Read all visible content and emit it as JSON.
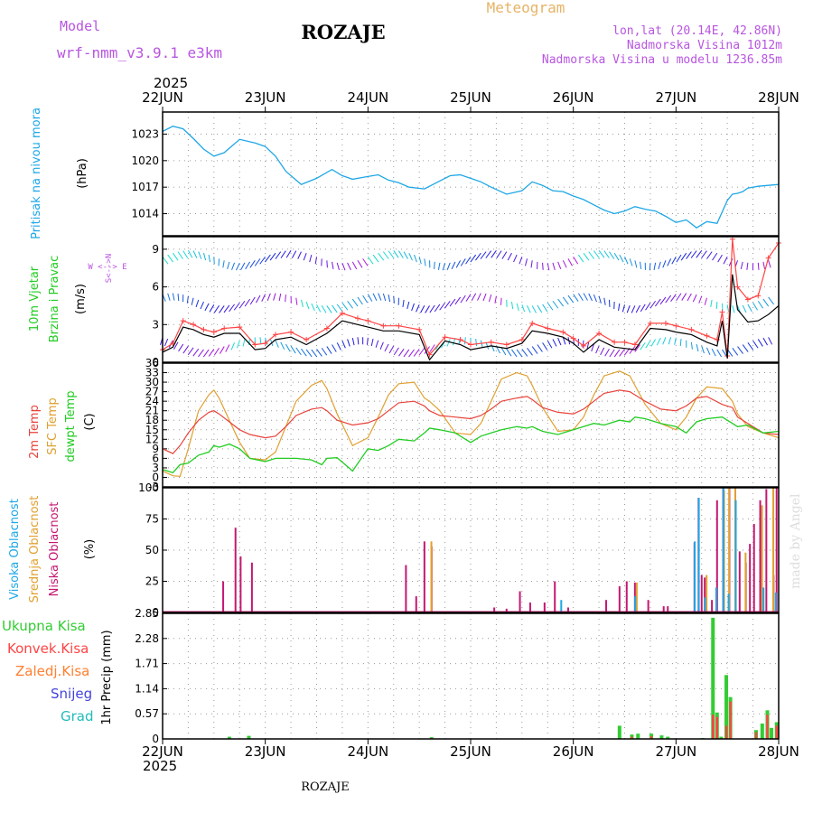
{
  "header": {
    "model_label": "Model",
    "model_name": "wrf-nmm_v3.9.1 e3km",
    "location": "ROZAJE",
    "meteogram_label": "Meteogram",
    "coords": "lon,lat (20.14E, 42.86N)",
    "elevation": "Nadmorska Visina 1012m",
    "model_elevation": "Nadmorska Visina u modelu 1236.85m",
    "year": "2025",
    "footer_location": "ROZAJE",
    "credit": "made by Angel"
  },
  "colors": {
    "pressure": "#1ea7e6",
    "wind_speed": "#000000",
    "wind_gust": "#ff4444",
    "temp2m": "#e8433b",
    "sfc_temp": "#e0a030",
    "dewpt": "#22cc22",
    "cloud_high": "#1ea7e6",
    "cloud_mid": "#e0a030",
    "cloud_low": "#c41870",
    "precip_total": "#33cc33",
    "precip_conv": "#ff4444",
    "precip_frozen": "#ff8030",
    "snow": "#4444dd",
    "hail": "#22bbbb",
    "model_purple": "#b855e0",
    "meteogram_orange": "#e6b366"
  },
  "chart_data": [
    {
      "id": "pressure",
      "type": "line",
      "ylabel_name": "Pritisak na nivou mora",
      "ylabel_unit": "(hPa)",
      "ylim": [
        1011.5,
        1025.5
      ],
      "yticks": [
        1014,
        1017,
        1020,
        1023
      ],
      "grid": true,
      "x": [
        0,
        0.1,
        0.2,
        0.3,
        0.4,
        0.5,
        0.6,
        0.75,
        0.9,
        1.0,
        1.1,
        1.2,
        1.35,
        1.5,
        1.65,
        1.75,
        1.85,
        2.0,
        2.1,
        2.2,
        2.3,
        2.4,
        2.55,
        2.7,
        2.8,
        2.9,
        3.0,
        3.1,
        3.2,
        3.35,
        3.5,
        3.6,
        3.7,
        3.8,
        3.9,
        4.0,
        4.1,
        4.2,
        4.3,
        4.4,
        4.5,
        4.6,
        4.7,
        4.8,
        4.9,
        5.0,
        5.1,
        5.2,
        5.3,
        5.4,
        5.5,
        5.55,
        5.6,
        5.65,
        5.7,
        5.8,
        5.9,
        6.0
      ],
      "series": [
        {
          "values": [
            1023.3,
            1023.9,
            1023.6,
            1022.5,
            1021.3,
            1020.5,
            1020.9,
            1022.4,
            1022.0,
            1021.6,
            1020.5,
            1018.8,
            1017.3,
            1018.0,
            1019.0,
            1018.3,
            1017.9,
            1018.2,
            1018.4,
            1017.8,
            1017.5,
            1017.0,
            1016.8,
            1017.7,
            1018.3,
            1018.4,
            1018.0,
            1017.6,
            1017.0,
            1016.2,
            1016.6,
            1017.6,
            1017.2,
            1016.6,
            1016.5,
            1016.0,
            1015.6,
            1015.0,
            1014.4,
            1014.0,
            1014.3,
            1014.8,
            1014.5,
            1014.3,
            1013.7,
            1013.0,
            1013.3,
            1012.4,
            1013.1,
            1012.9,
            1015.5,
            1016.2,
            1016.3,
            1016.5,
            1016.9,
            1017.1,
            1017.2,
            1017.3
          ]
        }
      ]
    },
    {
      "id": "wind",
      "type": "line",
      "ylabel_name_1": "10m Vjetar",
      "ylabel_name_2": "Brzina i Pravac",
      "ylabel_unit": "(m/s)",
      "compass": "W <--> E",
      "compass_sn": "S<-->N",
      "ylim": [
        0,
        10
      ],
      "yticks": [
        0,
        3,
        6,
        9
      ],
      "grid": true,
      "x": [
        0,
        0.1,
        0.2,
        0.3,
        0.4,
        0.5,
        0.6,
        0.75,
        0.9,
        1.0,
        1.1,
        1.25,
        1.4,
        1.6,
        1.75,
        1.9,
        2.0,
        2.15,
        2.3,
        2.5,
        2.6,
        2.75,
        2.9,
        3.0,
        3.2,
        3.35,
        3.5,
        3.6,
        3.75,
        3.9,
        4.0,
        4.1,
        4.25,
        4.4,
        4.5,
        4.6,
        4.75,
        4.9,
        5.0,
        5.15,
        5.3,
        5.4,
        5.45,
        5.5,
        5.55,
        5.6,
        5.7,
        5.8,
        5.9,
        6.0
      ],
      "series": [
        {
          "name": "speed",
          "values": [
            0.8,
            1.2,
            2.8,
            2.6,
            2.2,
            2.0,
            2.3,
            2.3,
            1.0,
            1.1,
            1.8,
            2.0,
            1.4,
            2.3,
            3.3,
            3.0,
            2.8,
            2.5,
            2.5,
            2.2,
            0.2,
            1.7,
            1.4,
            1.0,
            1.3,
            1.1,
            1.5,
            2.5,
            2.3,
            2.0,
            1.5,
            0.8,
            1.8,
            1.2,
            1.1,
            1.0,
            2.7,
            2.6,
            2.4,
            2.2,
            1.6,
            1.3,
            3.3,
            0.3,
            7.0,
            4.2,
            3.2,
            3.3,
            3.8,
            4.5
          ]
        },
        {
          "name": "gust",
          "values": [
            1.0,
            1.5,
            3.3,
            3.0,
            2.6,
            2.4,
            2.7,
            2.8,
            1.4,
            1.5,
            2.2,
            2.4,
            1.8,
            2.7,
            3.9,
            3.5,
            3.3,
            2.9,
            2.9,
            2.6,
            0.6,
            2.0,
            1.8,
            1.4,
            1.6,
            1.4,
            1.8,
            3.1,
            2.7,
            2.4,
            1.9,
            1.3,
            2.3,
            1.6,
            1.6,
            1.4,
            3.1,
            3.1,
            2.9,
            2.6,
            2.1,
            1.8,
            4.0,
            0.5,
            9.8,
            6.0,
            5.0,
            5.3,
            8.3,
            9.5
          ]
        }
      ]
    },
    {
      "id": "temp",
      "type": "line",
      "ylabel_name_1": "2m Temp",
      "ylabel_name_2": "SFC Temp",
      "ylabel_name_3": "dewpt Temp",
      "ylabel_unit": "(C)",
      "ylim": [
        -3,
        36
      ],
      "yticks": [
        -3,
        0,
        3,
        6,
        9,
        12,
        15,
        18,
        21,
        24,
        27,
        30,
        33,
        36
      ],
      "grid": true,
      "x": [
        0,
        0.1,
        0.17,
        0.25,
        0.35,
        0.45,
        0.5,
        0.55,
        0.65,
        0.75,
        0.85,
        1.0,
        1.1,
        1.2,
        1.3,
        1.45,
        1.55,
        1.6,
        1.7,
        1.85,
        2.0,
        2.1,
        2.2,
        2.3,
        2.45,
        2.55,
        2.6,
        2.7,
        2.85,
        3.0,
        3.1,
        3.2,
        3.3,
        3.45,
        3.55,
        3.6,
        3.7,
        3.85,
        4.0,
        4.1,
        4.2,
        4.3,
        4.45,
        4.55,
        4.6,
        4.7,
        4.85,
        5.0,
        5.1,
        5.2,
        5.3,
        5.45,
        5.55,
        5.6,
        5.7,
        5.85,
        6.0
      ],
      "series": [
        {
          "name": "temp2m",
          "values": [
            9,
            7.5,
            10,
            14,
            18,
            20.5,
            21,
            20,
            17.5,
            15,
            13.5,
            12.5,
            13,
            16,
            19.5,
            21.5,
            22,
            21,
            18,
            16.5,
            17.2,
            18.5,
            21,
            23.5,
            24,
            22.5,
            21,
            19.5,
            19,
            18.5,
            19.5,
            21.5,
            24,
            25,
            25.5,
            24.5,
            22,
            20.5,
            20,
            21.5,
            24,
            26.5,
            27.5,
            27,
            26,
            24,
            21.5,
            21,
            22.5,
            25,
            25.5,
            23,
            22,
            19,
            17,
            14,
            13.5
          ]
        },
        {
          "name": "sfc",
          "values": [
            2,
            0.5,
            0.3,
            9,
            21,
            26,
            27.5,
            25,
            18,
            11,
            6,
            5.5,
            8,
            16,
            24,
            29,
            30.5,
            28,
            20,
            10,
            12.5,
            19,
            26,
            29.5,
            30,
            25,
            24,
            21,
            14,
            13.5,
            17,
            24,
            31,
            33,
            32,
            29,
            22,
            14.5,
            15,
            19,
            26,
            32,
            33.5,
            32,
            29,
            23,
            17,
            15,
            19,
            25,
            28.5,
            28,
            24,
            20,
            16,
            14,
            12.5
          ]
        },
        {
          "name": "dewpt",
          "values": [
            2.5,
            1.5,
            4,
            4.5,
            7,
            8,
            10,
            9.5,
            10.5,
            9,
            6,
            5,
            6,
            6,
            6,
            5.5,
            4,
            6,
            6.2,
            2,
            9,
            8.5,
            10,
            12,
            11.5,
            14,
            15.5,
            15,
            14,
            11,
            13,
            14,
            15,
            16,
            15.5,
            16,
            14.5,
            13.5,
            15,
            16,
            17,
            16.5,
            18,
            17.5,
            19,
            18.5,
            17,
            16,
            14,
            17.5,
            18.5,
            19,
            17,
            16,
            16.5,
            14,
            14.5
          ]
        }
      ]
    },
    {
      "id": "cloud",
      "type": "bar",
      "ylabel_name_1": "Visoka Oblacnost",
      "ylabel_name_2": "Srednja Oblacnost",
      "ylabel_name_3": "Niska Oblacnost",
      "ylabel_unit": "(%)",
      "ylim": [
        0,
        100
      ],
      "yticks": [
        0,
        25,
        50,
        75,
        100
      ],
      "grid": true,
      "series": [
        {
          "name": "low",
          "x": [
            0.59,
            0.71,
            0.76,
            0.87,
            2.37,
            2.47,
            2.55,
            2.62,
            3.23,
            3.35,
            3.48,
            3.58,
            3.72,
            3.82,
            3.95,
            4.32,
            4.45,
            4.52,
            4.6,
            4.73,
            4.88,
            4.92,
            5.18,
            5.22,
            5.25,
            5.28,
            5.35,
            5.4,
            5.46,
            5.52,
            5.58,
            5.62,
            5.68,
            5.72,
            5.76,
            5.82,
            5.88,
            5.95,
            5.98
          ],
          "values": [
            25,
            68,
            45,
            40,
            38,
            13,
            57,
            53,
            4,
            3,
            17,
            8,
            8,
            25,
            4,
            10,
            21,
            25,
            24,
            10,
            5,
            5,
            56,
            92,
            30,
            28,
            10,
            90,
            100,
            100,
            70,
            49,
            40,
            55,
            71,
            90,
            99,
            30,
            100
          ]
        },
        {
          "name": "mid",
          "x": [
            2.6,
            4.6,
            5.28,
            5.45,
            5.5,
            5.56,
            5.66,
            5.82,
            5.93
          ],
          "values": [
            57,
            24,
            30,
            98,
            100,
            100,
            48,
            86,
            100
          ]
        },
        {
          "name": "high",
          "x": [
            1.0,
            3.9,
            4.62,
            5.2,
            5.24,
            5.3,
            5.41,
            5.48,
            5.53,
            5.6,
            5.87,
            5.99
          ],
          "values": [
            1,
            10,
            13,
            57,
            92,
            12,
            20,
            100,
            15,
            90,
            20,
            16
          ]
        }
      ]
    },
    {
      "id": "precip",
      "type": "bar",
      "ylabel_name": "1hr Precip",
      "ylabel_unit": "(mm)",
      "ylim": [
        0,
        2.85
      ],
      "yticks": [
        0,
        0.57,
        1.14,
        1.71,
        2.28,
        2.85
      ],
      "ytick_labels": [
        "0",
        "0.57",
        "1.14",
        "1.71",
        "2.28",
        "2.85"
      ],
      "legend": [
        "Ukupna Kisa",
        "Konvek.Kisa",
        "Zaledj.Kisa",
        "Snijeg",
        "Grad"
      ],
      "grid": true,
      "series": [
        {
          "name": "total",
          "x": [
            0.65,
            0.84,
            2.62,
            4.45,
            4.57,
            4.63,
            4.76,
            4.86,
            4.92,
            5.26,
            5.36,
            5.4,
            5.44,
            5.49,
            5.53,
            5.78,
            5.84,
            5.89,
            5.93,
            5.98
          ],
          "values": [
            0.05,
            0.07,
            0.04,
            0.3,
            0.1,
            0.12,
            0.12,
            0.08,
            0.05,
            0.02,
            2.75,
            0.6,
            0.05,
            1.45,
            0.95,
            0.2,
            0.35,
            0.65,
            0.25,
            0.38
          ]
        },
        {
          "name": "conv",
          "x": [
            2.62,
            4.57,
            4.76,
            5.36,
            5.4,
            5.49,
            5.53,
            5.78,
            5.89,
            5.98
          ],
          "values": [
            0.02,
            0.05,
            0.06,
            0.55,
            0.5,
            0.3,
            0.85,
            0.15,
            0.55,
            0.3
          ]
        }
      ]
    }
  ],
  "x_axis": {
    "range": [
      0,
      6
    ],
    "days": [
      "22JUN",
      "23JUN",
      "24JUN",
      "25JUN",
      "26JUN",
      "27JUN",
      "28JUN"
    ]
  }
}
